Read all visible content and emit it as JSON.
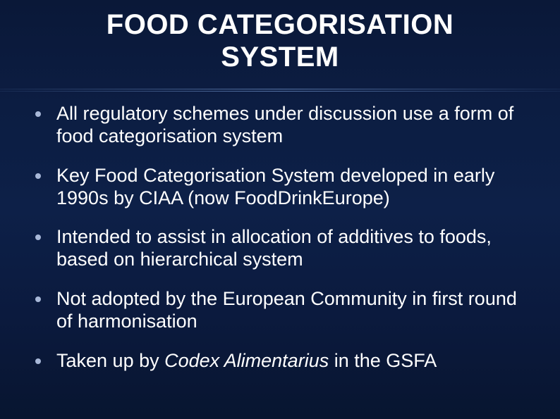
{
  "slide": {
    "background_gradient": [
      "#0a1838",
      "#0c1d42",
      "#0d2048",
      "#0b1a3e",
      "#081530"
    ],
    "text_color": "#ffffff",
    "bullet_color": "#a8b8d8",
    "divider_color": "#8cb4f0",
    "title_line1": "FOOD CATEGORISATION",
    "title_line2": "SYSTEM",
    "title_fontsize": 40,
    "body_fontsize": 27,
    "bullets": [
      {
        "text": "All regulatory schemes under discussion use a form of food categorisation system"
      },
      {
        "text": "Key Food Categorisation System developed in early 1990s by CIAA (now FoodDrinkEurope)"
      },
      {
        "text": "Intended to assist in allocation of additives to foods, based on hierarchical system"
      },
      {
        "text": "Not adopted by the European Community in first round of harmonisation"
      },
      {
        "text_pre": "Taken up by ",
        "text_italic": "Codex Alimentarius",
        "text_post": " in the GSFA"
      }
    ]
  }
}
